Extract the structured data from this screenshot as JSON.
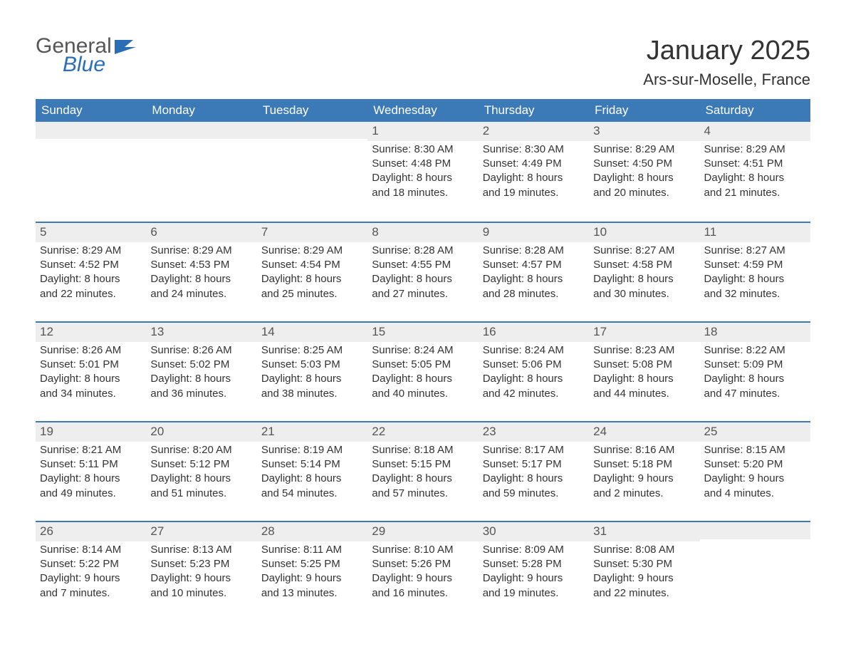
{
  "logo": {
    "text_general": "General",
    "text_blue": "Blue",
    "flag_color": "#2a6fb5"
  },
  "title": "January 2025",
  "subtitle": "Ars-sur-Moselle, France",
  "colors": {
    "header_bg": "#3b79b7",
    "header_text": "#ffffff",
    "daynum_bg": "#eeeeee",
    "row_border": "#3b79b7",
    "body_text": "#333333",
    "background": "#ffffff"
  },
  "typography": {
    "title_fontsize": 38,
    "subtitle_fontsize": 22,
    "weekday_fontsize": 17,
    "daynum_fontsize": 17,
    "body_fontsize": 15
  },
  "weekdays": [
    "Sunday",
    "Monday",
    "Tuesday",
    "Wednesday",
    "Thursday",
    "Friday",
    "Saturday"
  ],
  "weeks": [
    [
      {
        "day": "",
        "sunrise": "",
        "sunset": "",
        "daylight1": "",
        "daylight2": ""
      },
      {
        "day": "",
        "sunrise": "",
        "sunset": "",
        "daylight1": "",
        "daylight2": ""
      },
      {
        "day": "",
        "sunrise": "",
        "sunset": "",
        "daylight1": "",
        "daylight2": ""
      },
      {
        "day": "1",
        "sunrise": "Sunrise: 8:30 AM",
        "sunset": "Sunset: 4:48 PM",
        "daylight1": "Daylight: 8 hours",
        "daylight2": "and 18 minutes."
      },
      {
        "day": "2",
        "sunrise": "Sunrise: 8:30 AM",
        "sunset": "Sunset: 4:49 PM",
        "daylight1": "Daylight: 8 hours",
        "daylight2": "and 19 minutes."
      },
      {
        "day": "3",
        "sunrise": "Sunrise: 8:29 AM",
        "sunset": "Sunset: 4:50 PM",
        "daylight1": "Daylight: 8 hours",
        "daylight2": "and 20 minutes."
      },
      {
        "day": "4",
        "sunrise": "Sunrise: 8:29 AM",
        "sunset": "Sunset: 4:51 PM",
        "daylight1": "Daylight: 8 hours",
        "daylight2": "and 21 minutes."
      }
    ],
    [
      {
        "day": "5",
        "sunrise": "Sunrise: 8:29 AM",
        "sunset": "Sunset: 4:52 PM",
        "daylight1": "Daylight: 8 hours",
        "daylight2": "and 22 minutes."
      },
      {
        "day": "6",
        "sunrise": "Sunrise: 8:29 AM",
        "sunset": "Sunset: 4:53 PM",
        "daylight1": "Daylight: 8 hours",
        "daylight2": "and 24 minutes."
      },
      {
        "day": "7",
        "sunrise": "Sunrise: 8:29 AM",
        "sunset": "Sunset: 4:54 PM",
        "daylight1": "Daylight: 8 hours",
        "daylight2": "and 25 minutes."
      },
      {
        "day": "8",
        "sunrise": "Sunrise: 8:28 AM",
        "sunset": "Sunset: 4:55 PM",
        "daylight1": "Daylight: 8 hours",
        "daylight2": "and 27 minutes."
      },
      {
        "day": "9",
        "sunrise": "Sunrise: 8:28 AM",
        "sunset": "Sunset: 4:57 PM",
        "daylight1": "Daylight: 8 hours",
        "daylight2": "and 28 minutes."
      },
      {
        "day": "10",
        "sunrise": "Sunrise: 8:27 AM",
        "sunset": "Sunset: 4:58 PM",
        "daylight1": "Daylight: 8 hours",
        "daylight2": "and 30 minutes."
      },
      {
        "day": "11",
        "sunrise": "Sunrise: 8:27 AM",
        "sunset": "Sunset: 4:59 PM",
        "daylight1": "Daylight: 8 hours",
        "daylight2": "and 32 minutes."
      }
    ],
    [
      {
        "day": "12",
        "sunrise": "Sunrise: 8:26 AM",
        "sunset": "Sunset: 5:01 PM",
        "daylight1": "Daylight: 8 hours",
        "daylight2": "and 34 minutes."
      },
      {
        "day": "13",
        "sunrise": "Sunrise: 8:26 AM",
        "sunset": "Sunset: 5:02 PM",
        "daylight1": "Daylight: 8 hours",
        "daylight2": "and 36 minutes."
      },
      {
        "day": "14",
        "sunrise": "Sunrise: 8:25 AM",
        "sunset": "Sunset: 5:03 PM",
        "daylight1": "Daylight: 8 hours",
        "daylight2": "and 38 minutes."
      },
      {
        "day": "15",
        "sunrise": "Sunrise: 8:24 AM",
        "sunset": "Sunset: 5:05 PM",
        "daylight1": "Daylight: 8 hours",
        "daylight2": "and 40 minutes."
      },
      {
        "day": "16",
        "sunrise": "Sunrise: 8:24 AM",
        "sunset": "Sunset: 5:06 PM",
        "daylight1": "Daylight: 8 hours",
        "daylight2": "and 42 minutes."
      },
      {
        "day": "17",
        "sunrise": "Sunrise: 8:23 AM",
        "sunset": "Sunset: 5:08 PM",
        "daylight1": "Daylight: 8 hours",
        "daylight2": "and 44 minutes."
      },
      {
        "day": "18",
        "sunrise": "Sunrise: 8:22 AM",
        "sunset": "Sunset: 5:09 PM",
        "daylight1": "Daylight: 8 hours",
        "daylight2": "and 47 minutes."
      }
    ],
    [
      {
        "day": "19",
        "sunrise": "Sunrise: 8:21 AM",
        "sunset": "Sunset: 5:11 PM",
        "daylight1": "Daylight: 8 hours",
        "daylight2": "and 49 minutes."
      },
      {
        "day": "20",
        "sunrise": "Sunrise: 8:20 AM",
        "sunset": "Sunset: 5:12 PM",
        "daylight1": "Daylight: 8 hours",
        "daylight2": "and 51 minutes."
      },
      {
        "day": "21",
        "sunrise": "Sunrise: 8:19 AM",
        "sunset": "Sunset: 5:14 PM",
        "daylight1": "Daylight: 8 hours",
        "daylight2": "and 54 minutes."
      },
      {
        "day": "22",
        "sunrise": "Sunrise: 8:18 AM",
        "sunset": "Sunset: 5:15 PM",
        "daylight1": "Daylight: 8 hours",
        "daylight2": "and 57 minutes."
      },
      {
        "day": "23",
        "sunrise": "Sunrise: 8:17 AM",
        "sunset": "Sunset: 5:17 PM",
        "daylight1": "Daylight: 8 hours",
        "daylight2": "and 59 minutes."
      },
      {
        "day": "24",
        "sunrise": "Sunrise: 8:16 AM",
        "sunset": "Sunset: 5:18 PM",
        "daylight1": "Daylight: 9 hours",
        "daylight2": "and 2 minutes."
      },
      {
        "day": "25",
        "sunrise": "Sunrise: 8:15 AM",
        "sunset": "Sunset: 5:20 PM",
        "daylight1": "Daylight: 9 hours",
        "daylight2": "and 4 minutes."
      }
    ],
    [
      {
        "day": "26",
        "sunrise": "Sunrise: 8:14 AM",
        "sunset": "Sunset: 5:22 PM",
        "daylight1": "Daylight: 9 hours",
        "daylight2": "and 7 minutes."
      },
      {
        "day": "27",
        "sunrise": "Sunrise: 8:13 AM",
        "sunset": "Sunset: 5:23 PM",
        "daylight1": "Daylight: 9 hours",
        "daylight2": "and 10 minutes."
      },
      {
        "day": "28",
        "sunrise": "Sunrise: 8:11 AM",
        "sunset": "Sunset: 5:25 PM",
        "daylight1": "Daylight: 9 hours",
        "daylight2": "and 13 minutes."
      },
      {
        "day": "29",
        "sunrise": "Sunrise: 8:10 AM",
        "sunset": "Sunset: 5:26 PM",
        "daylight1": "Daylight: 9 hours",
        "daylight2": "and 16 minutes."
      },
      {
        "day": "30",
        "sunrise": "Sunrise: 8:09 AM",
        "sunset": "Sunset: 5:28 PM",
        "daylight1": "Daylight: 9 hours",
        "daylight2": "and 19 minutes."
      },
      {
        "day": "31",
        "sunrise": "Sunrise: 8:08 AM",
        "sunset": "Sunset: 5:30 PM",
        "daylight1": "Daylight: 9 hours",
        "daylight2": "and 22 minutes."
      },
      {
        "day": "",
        "sunrise": "",
        "sunset": "",
        "daylight1": "",
        "daylight2": ""
      }
    ]
  ]
}
